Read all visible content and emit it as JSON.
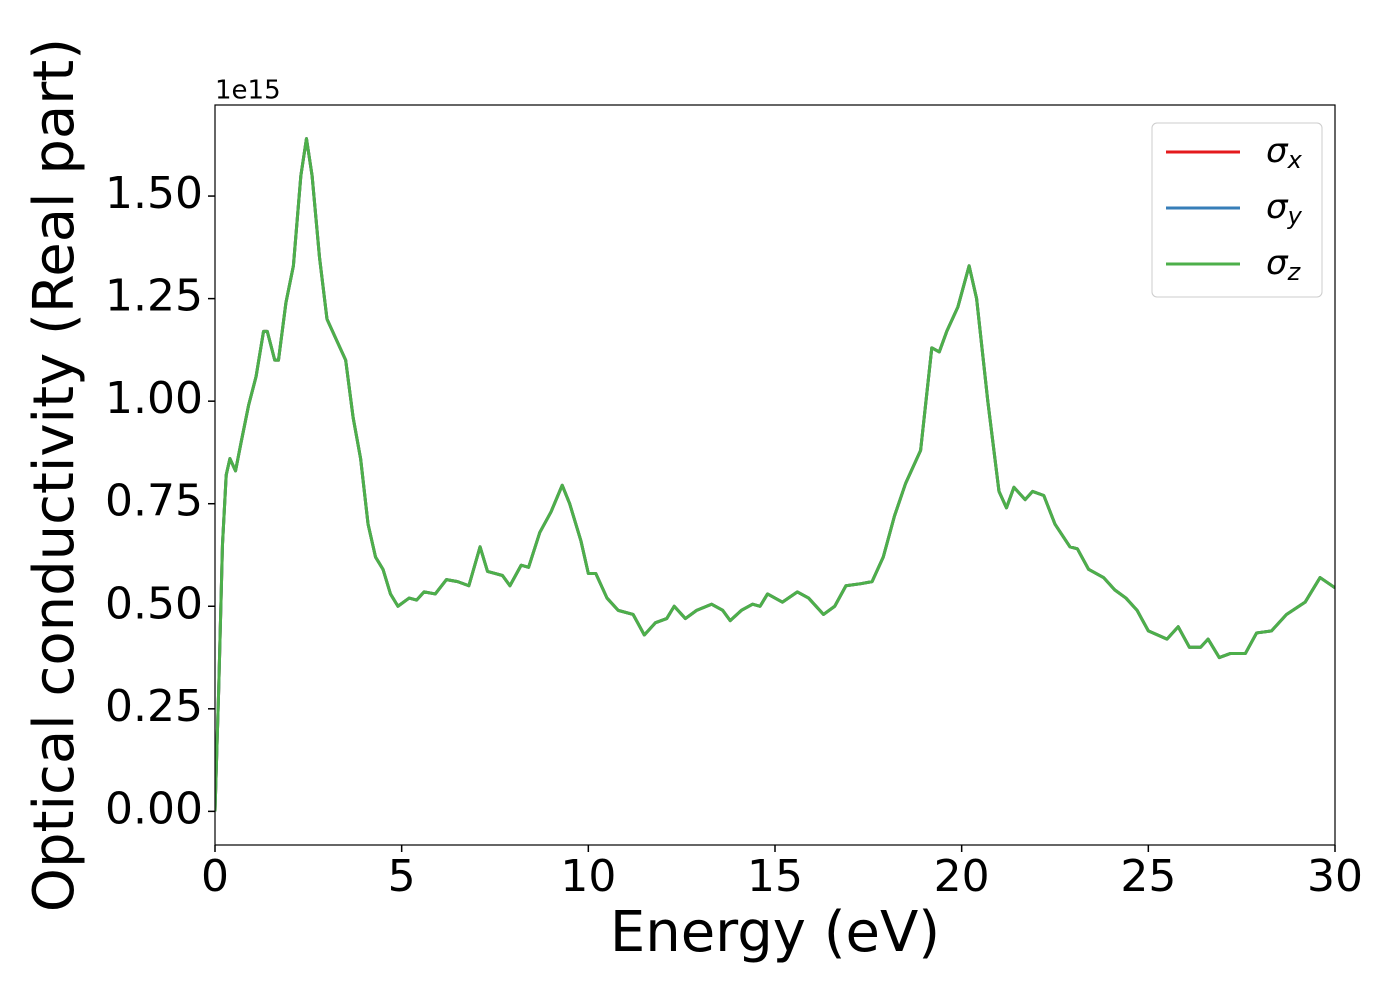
{
  "chart_data": {
    "type": "line",
    "xlabel": "Energy (eV)",
    "ylabel": "Optical conductivity (Real part)",
    "y_offset_label": "1e15",
    "x": [
      0,
      0.1,
      0.2,
      0.3,
      0.4,
      0.55,
      0.7,
      0.9,
      1.1,
      1.3,
      1.4,
      1.6,
      1.7,
      1.9,
      2.1,
      2.3,
      2.45,
      2.6,
      2.8,
      3.0,
      3.3,
      3.5,
      3.7,
      3.9,
      4.1,
      4.3,
      4.5,
      4.7,
      4.9,
      5.2,
      5.4,
      5.6,
      5.9,
      6.2,
      6.5,
      6.8,
      7.1,
      7.3,
      7.5,
      7.7,
      7.9,
      8.2,
      8.4,
      8.7,
      9.0,
      9.3,
      9.5,
      9.8,
      10.0,
      10.2,
      10.5,
      10.8,
      11.2,
      11.5,
      11.8,
      12.1,
      12.3,
      12.6,
      12.9,
      13.3,
      13.6,
      13.8,
      14.1,
      14.4,
      14.6,
      14.8,
      15.2,
      15.6,
      15.9,
      16.3,
      16.6,
      16.9,
      17.3,
      17.6,
      17.9,
      18.2,
      18.5,
      18.9,
      19.2,
      19.4,
      19.6,
      19.9,
      20.2,
      20.4,
      20.7,
      21.0,
      21.2,
      21.4,
      21.7,
      21.9,
      22.2,
      22.5,
      22.9,
      23.1,
      23.4,
      23.8,
      24.1,
      24.4,
      24.7,
      25.0,
      25.5,
      25.8,
      26.1,
      26.4,
      26.6,
      26.9,
      27.2,
      27.6,
      27.9,
      28.3,
      28.7,
      29.2,
      29.6,
      30.0
    ],
    "series": [
      {
        "name": "σx",
        "color": "#e41a1c",
        "values": [
          0,
          0.3,
          0.65,
          0.82,
          0.86,
          0.83,
          0.9,
          0.99,
          1.06,
          1.17,
          1.17,
          1.1,
          1.1,
          1.24,
          1.33,
          1.55,
          1.64,
          1.55,
          1.35,
          1.2,
          1.14,
          1.1,
          0.96,
          0.86,
          0.7,
          0.62,
          0.59,
          0.53,
          0.5,
          0.52,
          0.515,
          0.535,
          0.53,
          0.565,
          0.56,
          0.55,
          0.645,
          0.585,
          0.58,
          0.575,
          0.55,
          0.6,
          0.595,
          0.68,
          0.73,
          0.795,
          0.75,
          0.66,
          0.58,
          0.58,
          0.52,
          0.49,
          0.48,
          0.43,
          0.46,
          0.47,
          0.5,
          0.47,
          0.49,
          0.505,
          0.49,
          0.465,
          0.49,
          0.505,
          0.5,
          0.53,
          0.51,
          0.535,
          0.52,
          0.48,
          0.5,
          0.55,
          0.555,
          0.56,
          0.62,
          0.72,
          0.8,
          0.88,
          1.13,
          1.12,
          1.17,
          1.23,
          1.33,
          1.25,
          1.0,
          0.78,
          0.74,
          0.79,
          0.76,
          0.78,
          0.77,
          0.7,
          0.645,
          0.64,
          0.59,
          0.57,
          0.54,
          0.52,
          0.49,
          0.44,
          0.42,
          0.45,
          0.4,
          0.4,
          0.42,
          0.375,
          0.385,
          0.385,
          0.435,
          0.44,
          0.48,
          0.51,
          0.57,
          0.545
        ]
      },
      {
        "name": "σy",
        "color": "#377eb8",
        "values": [
          0,
          0.3,
          0.65,
          0.82,
          0.86,
          0.83,
          0.9,
          0.99,
          1.06,
          1.17,
          1.17,
          1.1,
          1.1,
          1.24,
          1.33,
          1.55,
          1.64,
          1.55,
          1.35,
          1.2,
          1.14,
          1.1,
          0.96,
          0.86,
          0.7,
          0.62,
          0.59,
          0.53,
          0.5,
          0.52,
          0.515,
          0.535,
          0.53,
          0.565,
          0.56,
          0.55,
          0.645,
          0.585,
          0.58,
          0.575,
          0.55,
          0.6,
          0.595,
          0.68,
          0.73,
          0.795,
          0.75,
          0.66,
          0.58,
          0.58,
          0.52,
          0.49,
          0.48,
          0.43,
          0.46,
          0.47,
          0.5,
          0.47,
          0.49,
          0.505,
          0.49,
          0.465,
          0.49,
          0.505,
          0.5,
          0.53,
          0.51,
          0.535,
          0.52,
          0.48,
          0.5,
          0.55,
          0.555,
          0.56,
          0.62,
          0.72,
          0.8,
          0.88,
          1.13,
          1.12,
          1.17,
          1.23,
          1.33,
          1.25,
          1.0,
          0.78,
          0.74,
          0.79,
          0.76,
          0.78,
          0.77,
          0.7,
          0.645,
          0.64,
          0.59,
          0.57,
          0.54,
          0.52,
          0.49,
          0.44,
          0.42,
          0.45,
          0.4,
          0.4,
          0.42,
          0.375,
          0.385,
          0.385,
          0.435,
          0.44,
          0.48,
          0.51,
          0.57,
          0.545
        ]
      },
      {
        "name": "σz",
        "color": "#4daf4a",
        "values": [
          0,
          0.3,
          0.65,
          0.82,
          0.86,
          0.83,
          0.9,
          0.99,
          1.06,
          1.17,
          1.17,
          1.1,
          1.1,
          1.24,
          1.33,
          1.55,
          1.64,
          1.55,
          1.35,
          1.2,
          1.14,
          1.1,
          0.96,
          0.86,
          0.7,
          0.62,
          0.59,
          0.53,
          0.5,
          0.52,
          0.515,
          0.535,
          0.53,
          0.565,
          0.56,
          0.55,
          0.645,
          0.585,
          0.58,
          0.575,
          0.55,
          0.6,
          0.595,
          0.68,
          0.73,
          0.795,
          0.75,
          0.66,
          0.58,
          0.58,
          0.52,
          0.49,
          0.48,
          0.43,
          0.46,
          0.47,
          0.5,
          0.47,
          0.49,
          0.505,
          0.49,
          0.465,
          0.49,
          0.505,
          0.5,
          0.53,
          0.51,
          0.535,
          0.52,
          0.48,
          0.5,
          0.55,
          0.555,
          0.56,
          0.62,
          0.72,
          0.8,
          0.88,
          1.13,
          1.12,
          1.17,
          1.23,
          1.33,
          1.25,
          1.0,
          0.78,
          0.74,
          0.79,
          0.76,
          0.78,
          0.77,
          0.7,
          0.645,
          0.64,
          0.59,
          0.57,
          0.54,
          0.52,
          0.49,
          0.44,
          0.42,
          0.45,
          0.4,
          0.4,
          0.42,
          0.375,
          0.385,
          0.385,
          0.435,
          0.44,
          0.48,
          0.51,
          0.57,
          0.545
        ]
      }
    ],
    "xlim": [
      0,
      30
    ],
    "xticks": [
      0,
      5,
      10,
      15,
      20,
      25,
      30
    ],
    "ylim": [
      -0.082,
      1.722
    ],
    "yticks": [
      {
        "value": 0,
        "label": "0.00"
      },
      {
        "value": 0.25,
        "label": "0.25"
      },
      {
        "value": 0.5,
        "label": "0.50"
      },
      {
        "value": 0.75,
        "label": "0.75"
      },
      {
        "value": 1,
        "label": "1.00"
      },
      {
        "value": 1.25,
        "label": "1.25"
      },
      {
        "value": 1.5,
        "label": "1.50"
      }
    ],
    "grid": false,
    "legend": "upper right"
  }
}
